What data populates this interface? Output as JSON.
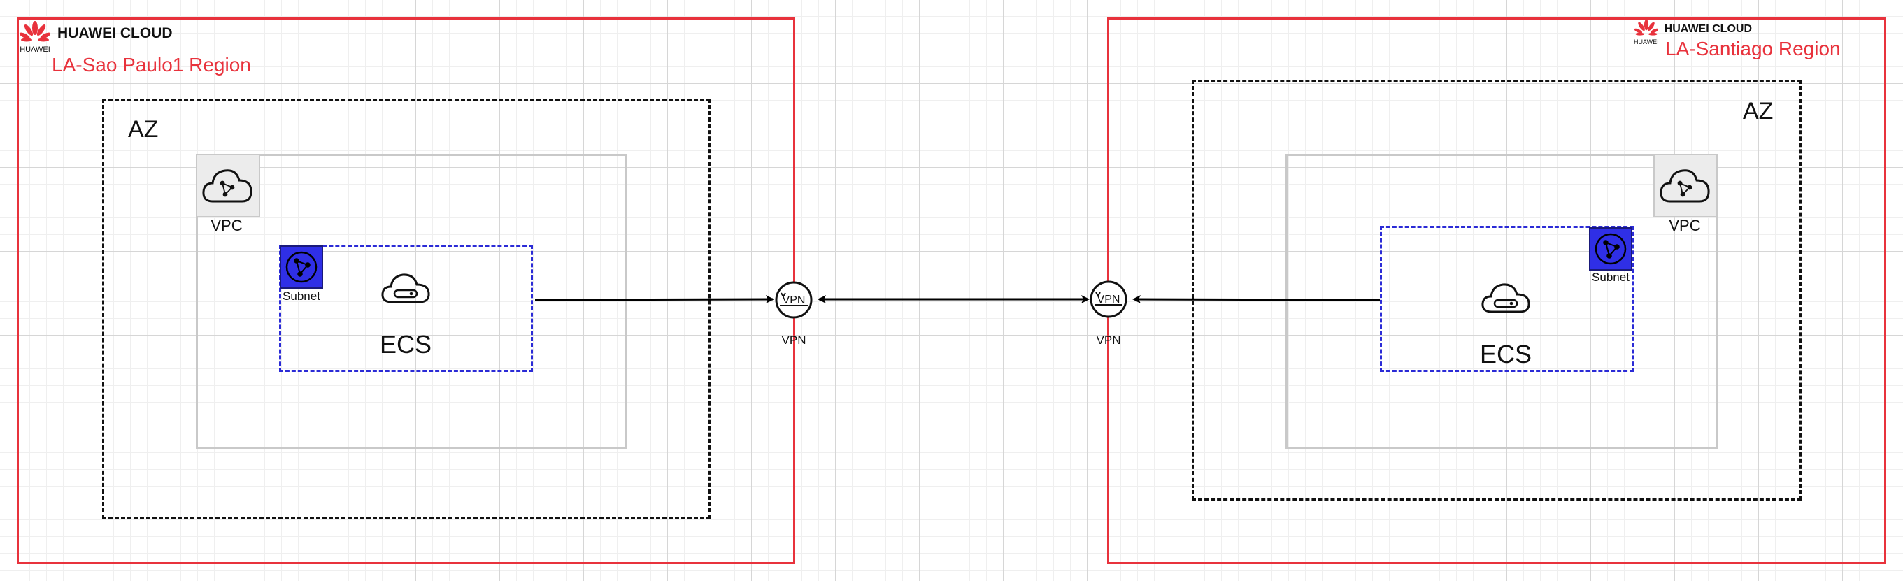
{
  "brand": {
    "logo_text": "HUAWEI CLOUD",
    "logo_sub": "HUAWEI"
  },
  "left": {
    "region_label": "LA-Sao Paulo1 Region",
    "az_label": "AZ",
    "vpc_label": "VPC",
    "subnet_label": "Subnet",
    "ecs_label": "ECS",
    "vpn_label": "VPN"
  },
  "right": {
    "region_label": "LA-Santiago Region",
    "az_label": "AZ",
    "vpc_label": "VPC",
    "subnet_label": "Subnet",
    "ecs_label": "ECS",
    "vpn_label": "VPN"
  },
  "icons": {
    "vpc": "vpc-cloud-icon",
    "subnet": "subnet-network-icon",
    "ecs": "ecs-cloud-server-icon",
    "vpn": "vpn-gateway-icon",
    "logo": "huawei-petal-logo"
  },
  "colors": {
    "region_border": "#e8323c",
    "subnet_border": "#2b2bd6",
    "subnet_icon": "#2f2fe6",
    "az_border": "#111111",
    "vpc_border": "#c9c9c9"
  }
}
